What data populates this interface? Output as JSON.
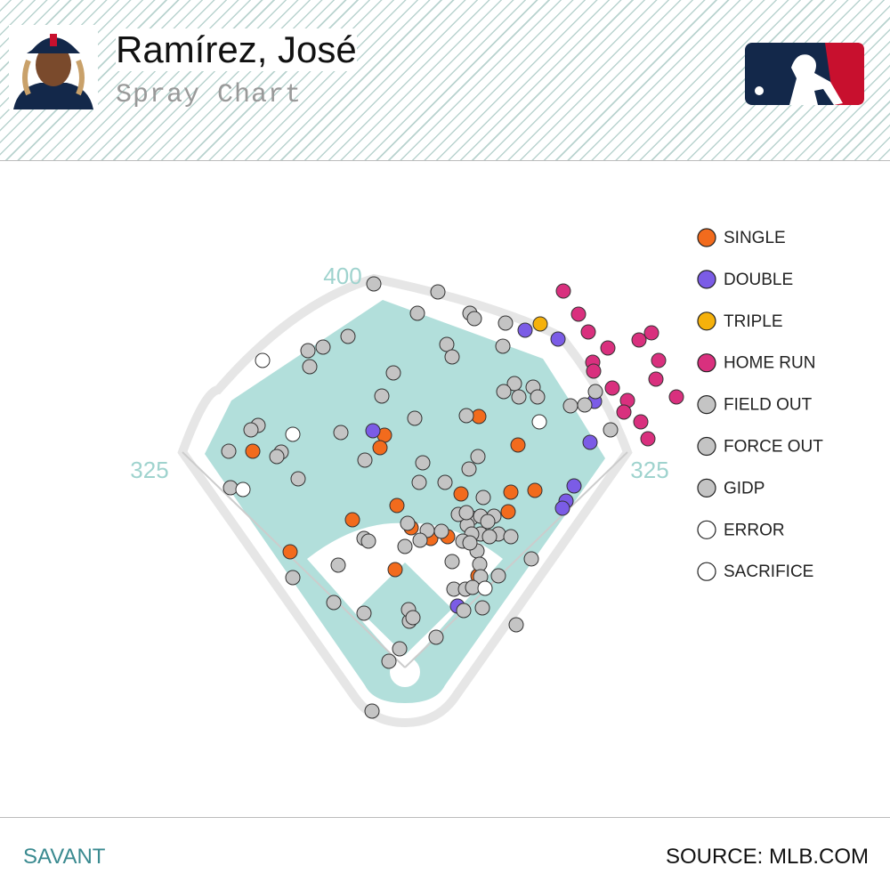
{
  "header": {
    "title": "Ramírez, José",
    "subtitle": "Spray Chart"
  },
  "footer": {
    "left": "SAVANT",
    "right": "SOURCE: MLB.COM"
  },
  "chart_data": {
    "type": "scatter",
    "distance_markers": [
      400,
      325,
      325
    ],
    "series": [
      {
        "name": "SINGLE",
        "color": "#f26b1d",
        "x": [
          83,
          -23,
          -28,
          -171,
          127,
          63,
          119,
          146,
          -9,
          116,
          -59,
          7,
          29,
          48,
          -129,
          -11,
          82
        ],
        "y": [
          282,
          261,
          247,
          243,
          250,
          195,
          197,
          199,
          182,
          175,
          166,
          157,
          145,
          147,
          130,
          110,
          103
        ]
      },
      {
        "name": "DOUBLE",
        "color": "#7b5ce6",
        "x": [
          135,
          172,
          213,
          208,
          190,
          181,
          177,
          -36,
          59
        ],
        "y": [
          379,
          369,
          299,
          253,
          204,
          187,
          179,
          266,
          69
        ]
      },
      {
        "name": "TRIPLE",
        "color": "#f5b10b",
        "x": [
          152
        ],
        "y": [
          386
        ]
      },
      {
        "name": "HOME RUN",
        "color": "#d9307e",
        "x": [
          178,
          195,
          206,
          228,
          263,
          277,
          285,
          211,
          212,
          233,
          250,
          246,
          265,
          282,
          305,
          273
        ],
        "y": [
          423,
          397,
          377,
          359,
          368,
          376,
          345,
          343,
          333,
          314,
          300,
          287,
          276,
          324,
          304,
          257
        ]
      },
      {
        "name": "FIELD OUT",
        "color": "#c4c4c4",
        "x": [
          -35,
          37,
          14,
          73,
          78,
          113,
          -64,
          -109,
          -92,
          47,
          53,
          110,
          -107,
          -13,
          123,
          111,
          128,
          144,
          149,
          -26,
          186,
          202,
          214,
          11,
          69,
          -72,
          231,
          -165,
          -173,
          -198,
          -139,
          -144,
          -45,
          20,
          82,
          72,
          -120,
          16,
          45,
          -196,
          88,
          75,
          85,
          100,
          70,
          93,
          105,
          119,
          25,
          41,
          17,
          85,
          75,
          65,
          -46,
          -41,
          0,
          81,
          142,
          53,
          -75,
          84,
          85,
          -126,
          55,
          68,
          76,
          105,
          -80,
          -46,
          5,
          87,
          66,
          125,
          35,
          -37,
          73,
          60
        ],
        "y": [
          431,
          422,
          398,
          398,
          392,
          387,
          372,
          356,
          360,
          363,
          349,
          361,
          338,
          331,
          319,
          310,
          304,
          315,
          304,
          305,
          294,
          295,
          310,
          280,
          283,
          264,
          267,
          272,
          267,
          243,
          242,
          237,
          233,
          230,
          237,
          223,
          212,
          208,
          208,
          202,
          191,
          168,
          170,
          170,
          160,
          164,
          150,
          147,
          154,
          153,
          143,
          150,
          150,
          142,
          145,
          142,
          136,
          131,
          122,
          119,
          115,
          116,
          102,
          101,
          88,
          88,
          90,
          103,
          73,
          61,
          52,
          67,
          64,
          48,
          34,
          -49,
          140,
          172
        ]
      },
      {
        "name": "FORCE OUT",
        "color": "#c4c4c4",
        "x": [
          69,
          3,
          95
        ],
        "y": [
          174,
          162,
          147
        ]
      },
      {
        "name": "GIDP",
        "color": "#c4c4c4",
        "x": [
          4,
          9,
          -6,
          -18
        ],
        "y": [
          65,
          56,
          21,
          7
        ]
      },
      {
        "name": "ERROR",
        "color": "#ffffff",
        "x": [
          -160,
          -126,
          151,
          90
        ],
        "y": [
          345,
          262,
          276,
          89
        ]
      },
      {
        "name": "SACRIFICE",
        "color": "#ffffff",
        "x": [
          -182
        ],
        "y": [
          200
        ]
      }
    ]
  }
}
